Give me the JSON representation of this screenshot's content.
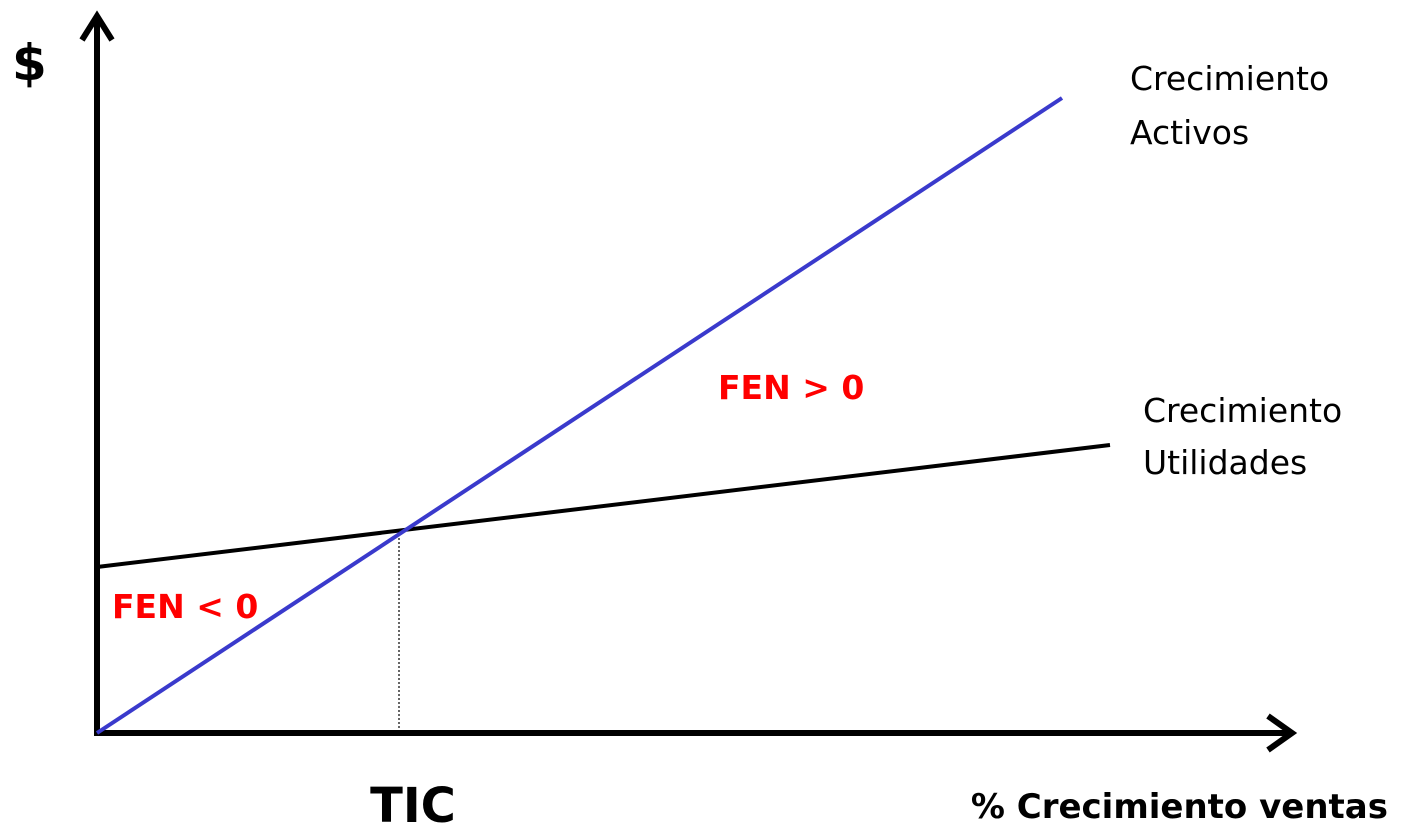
{
  "y_axis": {
    "label": "$"
  },
  "x_axis": {
    "label": "% Crecimiento ventas"
  },
  "lines": [
    {
      "label": [
        "Crecimiento",
        "Activos"
      ]
    },
    {
      "label": [
        "Crecimiento",
        "Utilidades"
      ]
    }
  ],
  "regions": [
    "FEN > 0",
    "FEN < 0"
  ],
  "intersection": {
    "label": "TIC"
  }
}
